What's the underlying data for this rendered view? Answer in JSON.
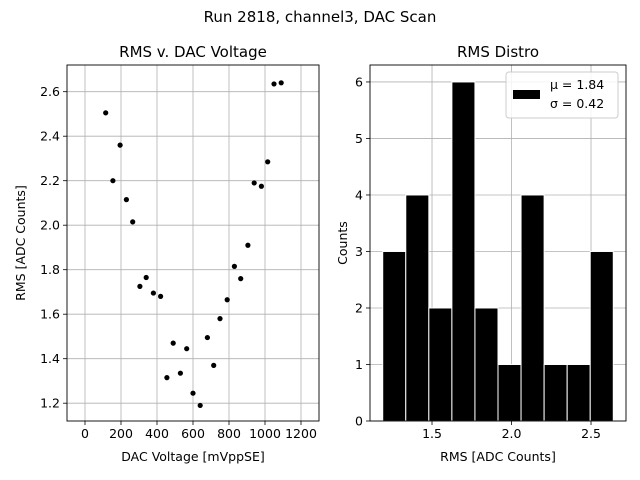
{
  "figure": {
    "title": "Run 2818, channel3, DAC Scan"
  },
  "chart_data": [
    {
      "type": "scatter",
      "title": "RMS v. DAC Voltage",
      "xlabel": "DAC Voltage [mVppSE]",
      "ylabel": "RMS [ADC Counts]",
      "xlim": [
        -100,
        1300
      ],
      "ylim": [
        1.12,
        2.72
      ],
      "xticks": [
        0,
        200,
        400,
        600,
        800,
        1000,
        1200
      ],
      "xtick_labels": [
        "0",
        "200",
        "400",
        "600",
        "800",
        "1000",
        "1200"
      ],
      "yticks": [
        1.2,
        1.4,
        1.6,
        1.8,
        2.0,
        2.2,
        2.4,
        2.6
      ],
      "ytick_labels": [
        "1.2",
        "1.4",
        "1.6",
        "1.8",
        "2.0",
        "2.2",
        "2.4",
        "2.6"
      ],
      "grid": true,
      "marker_color": "#000000",
      "x": [
        115,
        155,
        195,
        230,
        265,
        305,
        340,
        380,
        420,
        455,
        490,
        530,
        565,
        600,
        640,
        680,
        715,
        750,
        790,
        830,
        865,
        905,
        940,
        980,
        1015,
        1050,
        1090
      ],
      "y": [
        2.505,
        2.2,
        2.36,
        2.115,
        2.015,
        1.725,
        1.765,
        1.695,
        1.68,
        1.315,
        1.47,
        1.335,
        1.445,
        1.245,
        1.19,
        1.495,
        1.37,
        1.58,
        1.665,
        1.815,
        1.76,
        1.91,
        2.19,
        2.175,
        2.285,
        2.635,
        2.64
      ]
    },
    {
      "type": "histogram",
      "title": "RMS Distro",
      "xlabel": "RMS [ADC Counts]",
      "ylabel": "Counts",
      "xlim": [
        1.11,
        2.72
      ],
      "ylim": [
        0,
        6.3
      ],
      "xticks": [
        1.5,
        2.0,
        2.5
      ],
      "xtick_labels": [
        "1.5",
        "2.0",
        "2.5"
      ],
      "yticks": [
        0,
        1,
        2,
        3,
        4,
        5,
        6
      ],
      "ytick_labels": [
        "0",
        "1",
        "2",
        "3",
        "4",
        "5",
        "6"
      ],
      "grid": true,
      "bar_color": "#000000",
      "bin_edges": [
        1.19,
        1.335,
        1.48,
        1.625,
        1.77,
        1.915,
        2.06,
        2.205,
        2.35,
        2.495,
        2.64
      ],
      "counts": [
        3,
        4,
        2,
        6,
        2,
        1,
        4,
        1,
        1,
        3
      ],
      "legend": {
        "location": "top-right",
        "label": "μ = 1.84\nσ = 0.42",
        "mu_label": "μ = 1.84",
        "sigma_label": "σ = 0.42"
      }
    }
  ]
}
